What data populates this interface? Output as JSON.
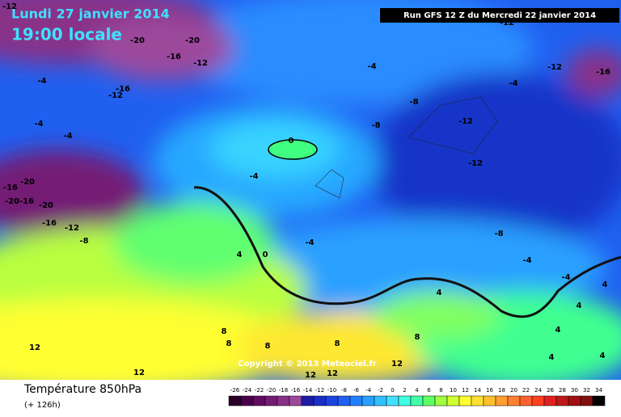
{
  "header": {
    "date": "Lundi 27 janvier 2014",
    "time": "19:00 locale",
    "run": "Run GFS 12 Z du Mercredi 22 janvier 2014"
  },
  "copyright": "Copyright © 2013 Meteociel.fr",
  "footer": {
    "title": "Température 850hPa",
    "lead": "(+ 126h)"
  },
  "scale": {
    "ticks": [
      -26,
      -24,
      -22,
      -20,
      -18,
      -16,
      -14,
      -12,
      -10,
      -8,
      -6,
      -4,
      -2,
      0,
      2,
      4,
      6,
      8,
      10,
      12,
      14,
      16,
      18,
      20,
      22,
      24,
      26,
      28,
      30,
      32,
      34
    ],
    "colors": [
      "#2a002a",
      "#4a004a",
      "#600a60",
      "#741c74",
      "#883088",
      "#9c489c",
      "#1c1ca8",
      "#1830c8",
      "#1c44e0",
      "#2060f0",
      "#2080ff",
      "#28a0ff",
      "#30c0ff",
      "#40e0ff",
      "#40ffe0",
      "#40ffa8",
      "#60ff60",
      "#a0ff40",
      "#d0ff30",
      "#ffff30",
      "#ffe030",
      "#ffc030",
      "#ffa030",
      "#ff8030",
      "#ff6030",
      "#ff4020",
      "#e02020",
      "#c01818",
      "#a01010",
      "#801010",
      "#000000"
    ]
  },
  "map_labels": [
    -12,
    -20,
    -20,
    -16,
    -12,
    -4,
    -16,
    -12,
    -4,
    -4,
    -20,
    -16,
    -16,
    -20,
    -20,
    -16,
    -12,
    -8,
    -4,
    -12,
    -16,
    -4,
    -8,
    -12,
    -8,
    0,
    -4,
    -12,
    -8,
    -4,
    4,
    0,
    -4,
    -4,
    4,
    4,
    4,
    4,
    8,
    8,
    8,
    8,
    8,
    12,
    12,
    12,
    12,
    12,
    4,
    4,
    -12
  ]
}
